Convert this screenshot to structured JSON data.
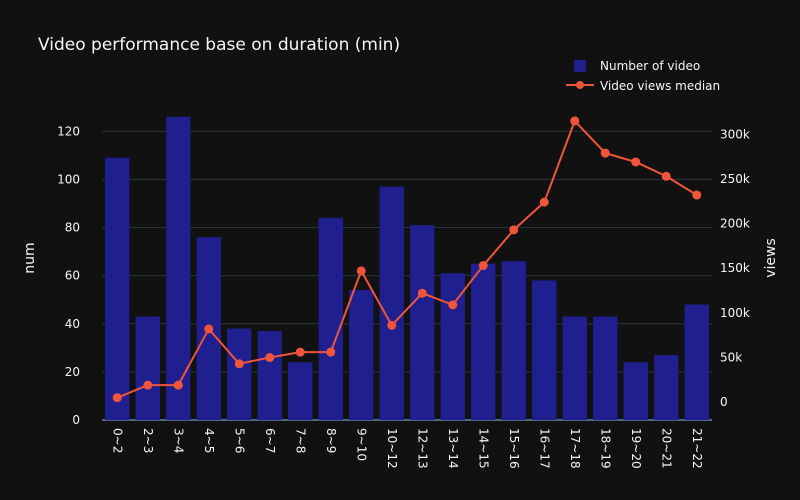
{
  "chart_data": {
    "type": "bar",
    "title": "Video performance base on duration (min)",
    "ylabel": "num",
    "y2label": "views",
    "ylim": [
      0,
      128
    ],
    "y2lim": [
      -20000,
      325000
    ],
    "yticks": [
      0,
      20,
      40,
      60,
      80,
      100,
      120
    ],
    "y2ticks": [
      {
        "value": 0,
        "label": "0"
      },
      {
        "value": 50000,
        "label": "50k"
      },
      {
        "value": 100000,
        "label": "100k"
      },
      {
        "value": 150000,
        "label": "150k"
      },
      {
        "value": 200000,
        "label": "200k"
      },
      {
        "value": 250000,
        "label": "250k"
      },
      {
        "value": 300000,
        "label": "300k"
      }
    ],
    "categories": [
      "0~2",
      "2~3",
      "3~4",
      "4~5",
      "5~6",
      "6~7",
      "7~8",
      "8~9",
      "9~10",
      "10~12",
      "12~13",
      "13~14",
      "14~15",
      "15~16",
      "16~17",
      "17~18",
      "18~19",
      "19~20",
      "20~21",
      "21~22"
    ],
    "series": [
      {
        "name": "Number of video",
        "type": "bar",
        "color": "#1f1f8f",
        "values": [
          109,
          43,
          126,
          76,
          38,
          37,
          24,
          84,
          54,
          97,
          81,
          61,
          65,
          66,
          58,
          43,
          43,
          24,
          27,
          48
        ]
      },
      {
        "name": "Video views median",
        "type": "line",
        "color": "#ef553b",
        "values": [
          5000,
          19000,
          19000,
          82000,
          43000,
          50000,
          56000,
          56000,
          147000,
          86000,
          122000,
          109000,
          153000,
          193000,
          224000,
          315000,
          279000,
          269000,
          253000,
          232000
        ]
      }
    ],
    "legend": "top-right",
    "grid": true
  }
}
